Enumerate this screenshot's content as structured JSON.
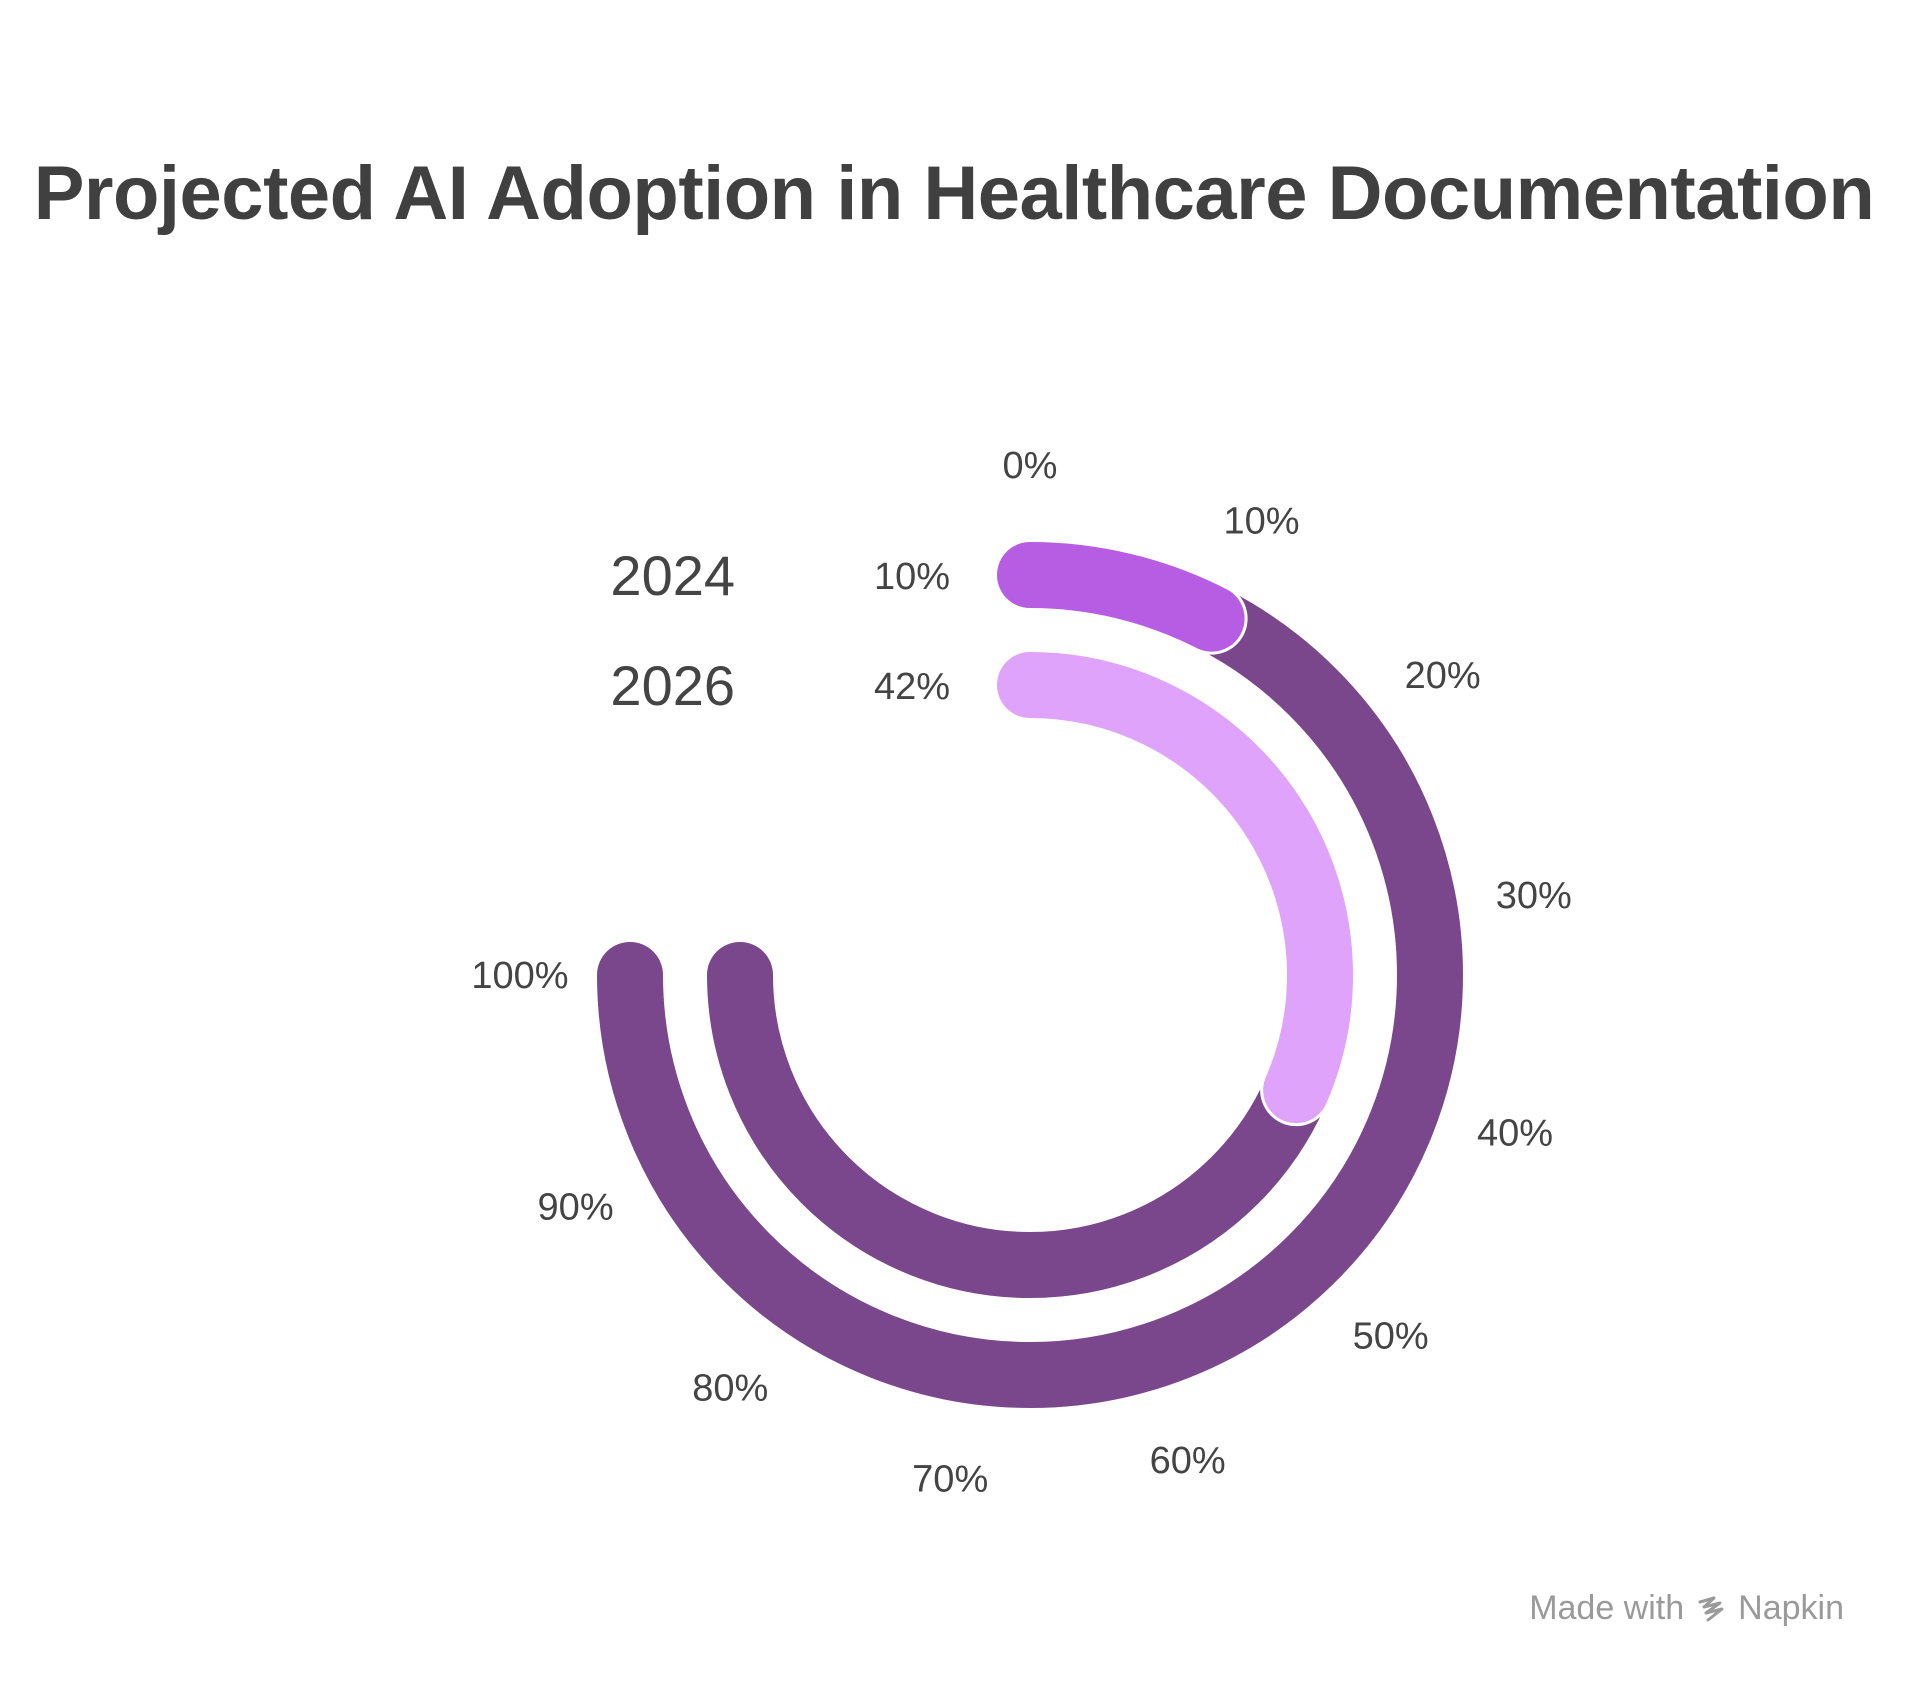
{
  "chart_data": {
    "type": "radial-bar",
    "title": "Projected AI Adoption in Healthcare Documentation",
    "axis": {
      "min": 0,
      "max": 100,
      "ticks": [
        "0%",
        "10%",
        "20%",
        "30%",
        "40%",
        "50%",
        "60%",
        "70%",
        "80%",
        "90%",
        "100%"
      ]
    },
    "categories": [
      "2024",
      "2026"
    ],
    "values": [
      10,
      42
    ],
    "value_labels": [
      "10%",
      "42%"
    ],
    "colors": {
      "track": "#7a478c",
      "2024": "#b75de3",
      "2026": "#e0a3fb"
    }
  },
  "footer": {
    "made_with": "Made with",
    "brand": "Napkin",
    "icon": "napkin-logo-icon"
  }
}
